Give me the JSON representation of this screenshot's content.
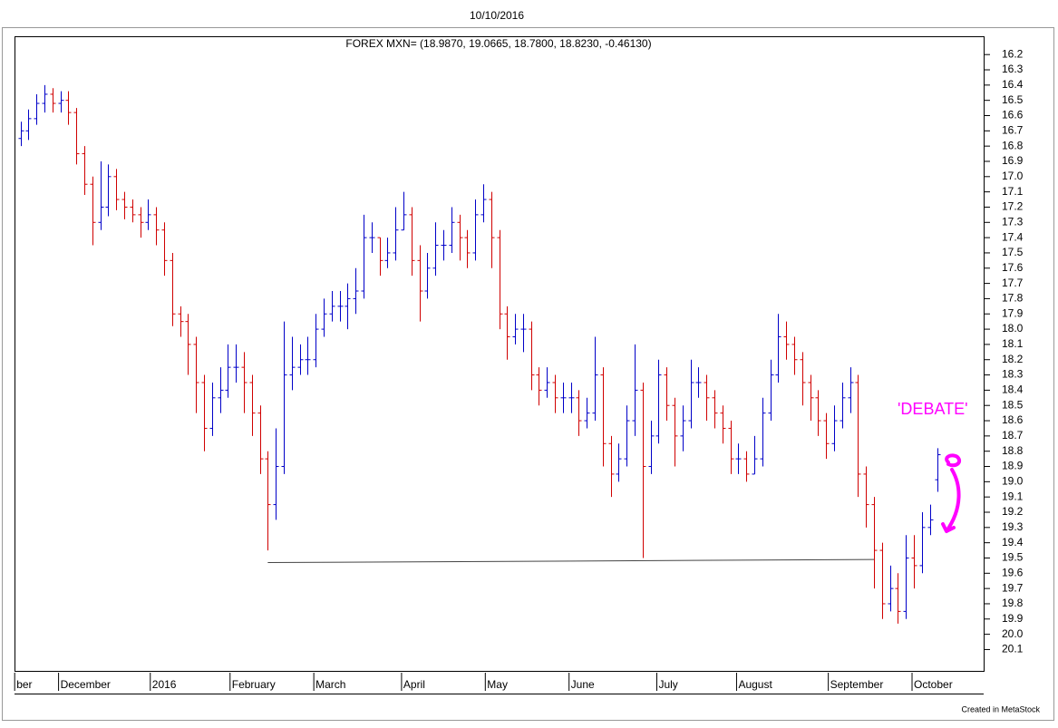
{
  "chart_data": {
    "type": "ohlc",
    "title": "10/10/2016",
    "subtitle": "FOREX MXN= (18.9870, 19.0665, 18.7800, 18.8230, -0.46130)",
    "footer": "Created in MetaStock",
    "annotations": [
      {
        "text": "'DEBATE'",
        "color": "#ff00ff"
      }
    ],
    "up_color": "#d00000",
    "down_color": "#0000c8",
    "inverted_y": true,
    "xlim": [
      -0.5,
      242.5
    ],
    "ylim": [
      20.24,
      16.08
    ],
    "xticks": [
      {
        "value": 0,
        "label": "ber"
      },
      {
        "value": 11,
        "label": "December"
      },
      {
        "value": 34,
        "label": "2016"
      },
      {
        "value": 54,
        "label": "February"
      },
      {
        "value": 75,
        "label": "March"
      },
      {
        "value": 97,
        "label": "April"
      },
      {
        "value": 118,
        "label": "May"
      },
      {
        "value": 139,
        "label": "June"
      },
      {
        "value": 161,
        "label": "July"
      },
      {
        "value": 181,
        "label": "August"
      },
      {
        "value": 204,
        "label": "September"
      },
      {
        "value": 225,
        "label": "October"
      }
    ],
    "yticks": [
      16.2,
      16.3,
      16.4,
      16.5,
      16.6,
      16.7,
      16.8,
      16.9,
      {
        "value": 17,
        "label": "17.0"
      },
      17.1,
      17.2,
      17.3,
      17.4,
      17.5,
      17.6,
      17.7,
      17.8,
      17.9,
      {
        "value": 18,
        "label": "18.0"
      },
      18.1,
      18.2,
      18.3,
      18.4,
      18.5,
      18.6,
      18.7,
      18.8,
      18.9,
      {
        "value": 19,
        "label": "19.0"
      },
      19.1,
      19.2,
      19.3,
      19.4,
      19.5,
      19.6,
      19.7,
      19.8,
      19.9,
      {
        "value": 20,
        "label": "20.0"
      },
      20.1
    ],
    "trendline": {
      "x": [
        63,
        215
      ],
      "y": [
        19.53,
        19.51
      ],
      "color": "#444444"
    },
    "x": [
      1,
      3,
      5,
      7,
      9,
      11,
      13,
      15,
      17,
      19,
      21,
      23,
      25,
      27,
      29,
      31,
      33,
      35,
      37,
      39,
      41,
      43,
      45,
      47,
      49,
      51,
      53,
      55,
      57,
      59,
      61,
      63,
      65,
      67,
      69,
      71,
      73,
      75,
      77,
      79,
      81,
      83,
      85,
      87,
      89,
      91,
      93,
      95,
      97,
      99,
      101,
      103,
      105,
      107,
      109,
      111,
      113,
      115,
      117,
      119,
      121,
      123,
      125,
      127,
      129,
      131,
      133,
      135,
      137,
      139,
      141,
      143,
      145,
      147,
      149,
      151,
      153,
      155,
      157,
      159,
      161,
      163,
      165,
      167,
      169,
      171,
      173,
      175,
      177,
      179,
      181,
      183,
      185,
      187,
      189,
      191,
      193,
      195,
      197,
      199,
      201,
      203,
      205,
      207,
      209,
      211,
      213,
      215,
      217,
      219,
      221,
      223,
      225,
      227,
      229,
      231
    ],
    "open": [
      16.75,
      16.7,
      16.62,
      16.52,
      16.46,
      16.52,
      16.5,
      16.58,
      16.85,
      17.05,
      17.3,
      17.2,
      17.0,
      17.15,
      17.2,
      17.25,
      17.3,
      17.25,
      17.35,
      17.55,
      17.9,
      17.95,
      18.1,
      18.35,
      18.65,
      18.45,
      18.4,
      18.25,
      18.25,
      18.35,
      18.55,
      18.85,
      19.15,
      18.9,
      18.3,
      18.25,
      18.2,
      18.2,
      18.0,
      17.9,
      17.85,
      17.85,
      17.8,
      17.75,
      17.4,
      17.4,
      17.55,
      17.5,
      17.35,
      17.25,
      17.55,
      17.75,
      17.6,
      17.45,
      17.45,
      17.3,
      17.4,
      17.5,
      17.25,
      17.15,
      17.4,
      17.9,
      18.05,
      18.0,
      18.0,
      18.3,
      18.4,
      18.35,
      18.45,
      18.45,
      18.45,
      18.6,
      18.55,
      18.3,
      18.75,
      18.95,
      18.85,
      18.6,
      18.4,
      18.9,
      18.7,
      18.3,
      18.5,
      18.7,
      18.6,
      18.35,
      18.35,
      18.45,
      18.55,
      18.65,
      18.85,
      18.85,
      18.95,
      18.85,
      18.55,
      18.3,
      18.05,
      18.1,
      18.2,
      18.35,
      18.45,
      18.6,
      18.75,
      18.6,
      18.45,
      18.35,
      18.95,
      19.15,
      19.45,
      19.8,
      19.7,
      19.85,
      19.5,
      19.55,
      19.3,
      18.987
    ],
    "high": [
      16.8,
      16.76,
      16.66,
      16.58,
      16.58,
      16.58,
      16.66,
      16.92,
      17.12,
      17.45,
      17.35,
      17.26,
      17.22,
      17.28,
      17.3,
      17.4,
      17.35,
      17.45,
      17.65,
      17.98,
      18.05,
      18.3,
      18.55,
      18.8,
      18.7,
      18.55,
      18.45,
      18.35,
      18.55,
      18.7,
      18.95,
      19.45,
      19.25,
      18.95,
      18.4,
      18.3,
      18.3,
      18.25,
      18.05,
      17.95,
      17.95,
      18.0,
      17.9,
      17.8,
      17.5,
      17.65,
      17.6,
      17.55,
      17.35,
      17.65,
      17.95,
      17.8,
      17.65,
      17.55,
      17.5,
      17.55,
      17.6,
      17.55,
      17.3,
      17.6,
      18.0,
      18.2,
      18.1,
      18.15,
      18.4,
      18.5,
      18.45,
      18.55,
      18.55,
      18.55,
      18.7,
      18.65,
      18.6,
      18.9,
      19.1,
      19.0,
      18.9,
      18.7,
      19.5,
      18.95,
      18.75,
      18.6,
      18.9,
      18.8,
      18.65,
      18.45,
      18.6,
      18.65,
      18.75,
      18.95,
      18.95,
      19.0,
      18.95,
      18.9,
      18.6,
      18.35,
      18.2,
      18.3,
      18.5,
      18.6,
      18.7,
      18.85,
      18.8,
      18.65,
      18.55,
      19.1,
      19.3,
      19.7,
      19.9,
      19.85,
      19.93,
      19.9,
      19.7,
      19.6,
      19.35,
      19.0665
    ],
    "low": [
      16.64,
      16.56,
      16.46,
      16.4,
      16.42,
      16.44,
      16.44,
      16.55,
      16.8,
      17.0,
      16.9,
      16.92,
      16.95,
      17.1,
      17.15,
      17.2,
      17.15,
      17.2,
      17.3,
      17.5,
      17.85,
      17.9,
      18.05,
      18.3,
      18.35,
      18.25,
      18.1,
      18.1,
      18.15,
      18.3,
      18.5,
      18.8,
      18.65,
      17.95,
      18.05,
      18.1,
      18.05,
      17.9,
      17.8,
      17.75,
      17.75,
      17.7,
      17.6,
      17.25,
      17.3,
      17.4,
      17.4,
      17.2,
      17.1,
      17.2,
      17.45,
      17.5,
      17.3,
      17.35,
      17.2,
      17.25,
      17.35,
      17.15,
      17.05,
      17.1,
      17.35,
      17.85,
      17.9,
      17.9,
      17.95,
      18.25,
      18.25,
      18.3,
      18.35,
      18.35,
      18.4,
      18.45,
      18.05,
      18.25,
      18.7,
      18.75,
      18.5,
      18.1,
      18.35,
      18.6,
      18.2,
      18.25,
      18.45,
      18.5,
      18.2,
      18.25,
      18.3,
      18.4,
      18.5,
      18.6,
      18.75,
      18.8,
      18.7,
      18.45,
      18.2,
      17.9,
      17.95,
      18.05,
      18.15,
      18.3,
      18.4,
      18.55,
      18.5,
      18.35,
      18.25,
      18.3,
      18.9,
      19.1,
      19.4,
      19.55,
      19.6,
      19.35,
      19.35,
      19.2,
      19.15,
      18.78
    ],
    "close": [
      16.7,
      16.62,
      16.52,
      16.46,
      16.52,
      16.5,
      16.58,
      16.85,
      17.05,
      17.3,
      17.2,
      17.0,
      17.15,
      17.2,
      17.25,
      17.3,
      17.25,
      17.35,
      17.55,
      17.9,
      17.95,
      18.1,
      18.35,
      18.65,
      18.45,
      18.4,
      18.25,
      18.25,
      18.35,
      18.55,
      18.85,
      19.15,
      18.9,
      18.3,
      18.25,
      18.2,
      18.2,
      18.0,
      17.9,
      17.85,
      17.85,
      17.8,
      17.75,
      17.4,
      17.4,
      17.55,
      17.5,
      17.35,
      17.25,
      17.55,
      17.75,
      17.6,
      17.45,
      17.45,
      17.3,
      17.4,
      17.5,
      17.25,
      17.15,
      17.4,
      17.9,
      18.05,
      18.0,
      18.0,
      18.3,
      18.4,
      18.35,
      18.45,
      18.45,
      18.45,
      18.6,
      18.55,
      18.3,
      18.75,
      18.95,
      18.85,
      18.6,
      18.4,
      18.9,
      18.7,
      18.3,
      18.5,
      18.7,
      18.6,
      18.35,
      18.35,
      18.45,
      18.55,
      18.65,
      18.85,
      18.85,
      18.95,
      18.85,
      18.55,
      18.3,
      18.05,
      18.1,
      18.2,
      18.35,
      18.45,
      18.6,
      18.75,
      18.6,
      18.45,
      18.35,
      18.95,
      19.15,
      19.45,
      19.8,
      19.7,
      19.85,
      19.5,
      19.55,
      19.3,
      19.25,
      18.823
    ]
  }
}
